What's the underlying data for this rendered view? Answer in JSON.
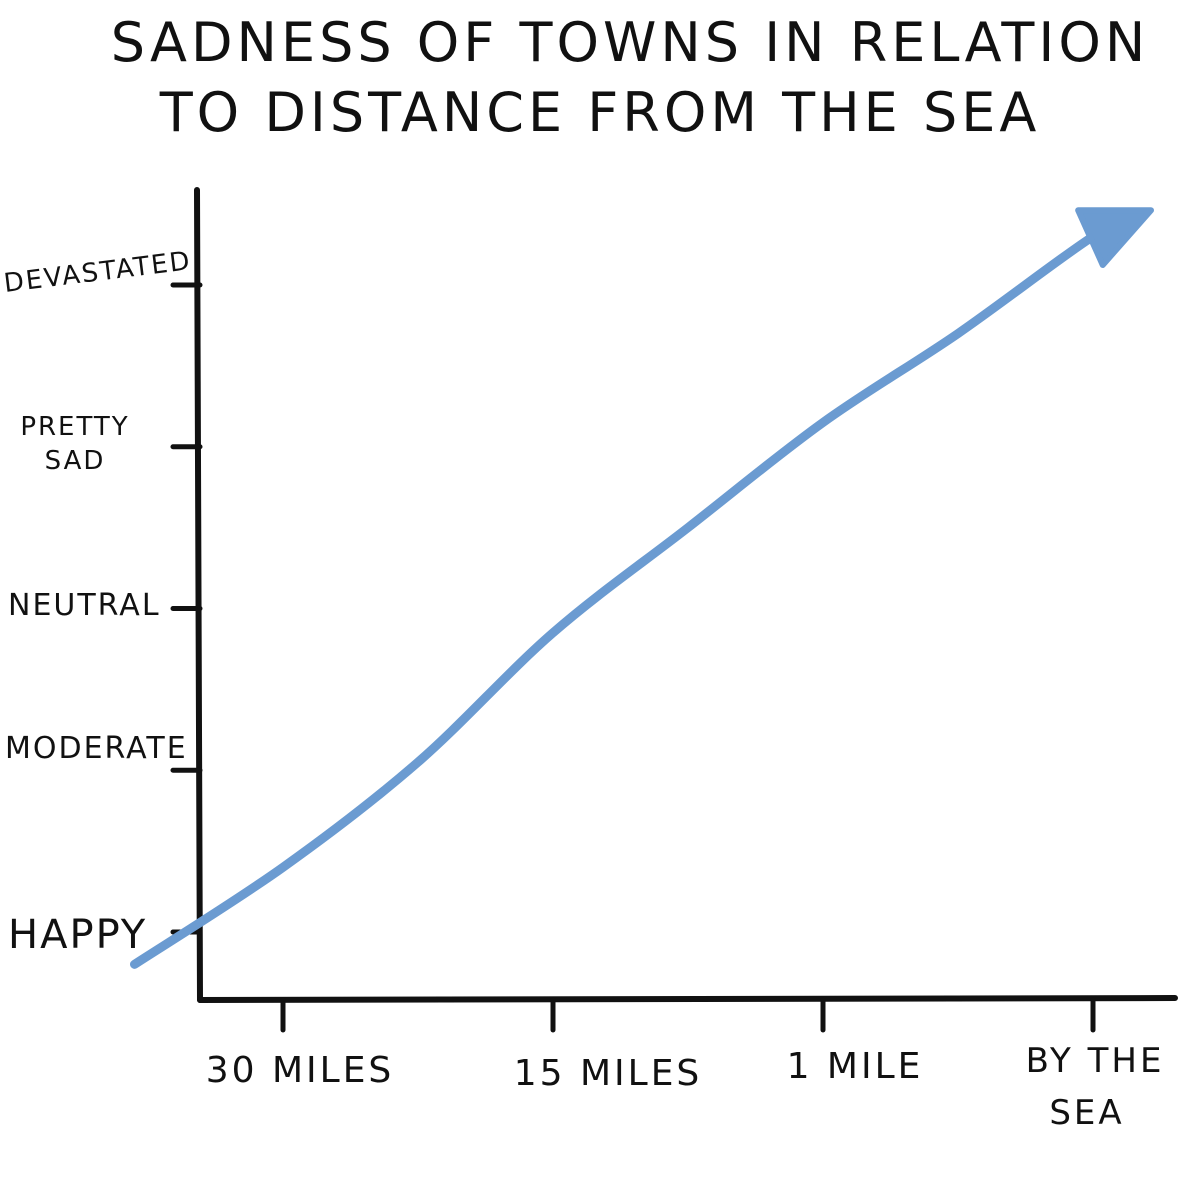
{
  "title": {
    "line1": "SADNESS OF TOWNS IN RELATION",
    "line2": "TO DISTANCE FROM THE SEA"
  },
  "colors": {
    "line": "#6b9bd1",
    "axis": "#111111"
  },
  "chart_data": {
    "type": "line",
    "title": "SADNESS OF TOWNS IN RELATION TO DISTANCE FROM THE SEA",
    "xlabel": "",
    "ylabel": "",
    "x_categories": [
      "30 MILES",
      "15 MILES",
      "1 MILE",
      "BY THE SEA"
    ],
    "y_categories": [
      "HAPPY",
      "MODERATE",
      "NEUTRAL",
      "PRETTY SAD",
      "DEVASTATED"
    ],
    "x_axis_positions": [
      0.5,
      1.5,
      2.5,
      3.5
    ],
    "x_range": [
      0.0,
      4.0
    ],
    "y_range": [
      0.0,
      4.0
    ],
    "y_tick_values": [
      0,
      1,
      2,
      3,
      4
    ],
    "grid": false,
    "legend": "none",
    "series": [
      {
        "x": [
          -0.05,
          0.5,
          1.0,
          1.5,
          2.0,
          2.5,
          3.0,
          3.5,
          3.7
        ],
        "y": [
          -0.2,
          0.4,
          1.05,
          1.85,
          2.5,
          3.15,
          3.7,
          4.3,
          4.45
        ],
        "arrow_end": true
      }
    ]
  }
}
